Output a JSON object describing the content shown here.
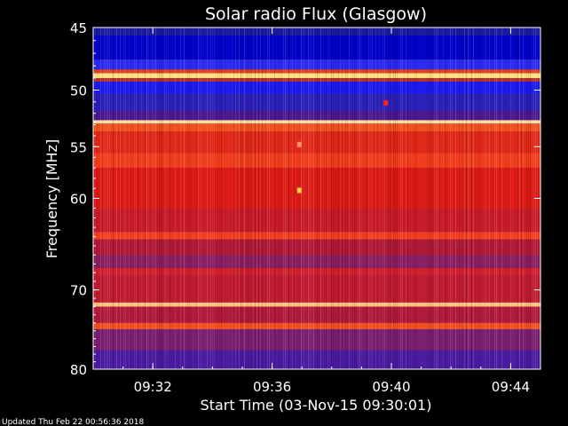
{
  "chart_data": {
    "type": "heatmap",
    "title": "Solar radio Flux (Glasgow)",
    "xlabel": "Start Time (03-Nov-15 09:30:01)",
    "ylabel": "Frequency [MHz]",
    "x_ticks": [
      "09:32",
      "09:36",
      "09:40",
      "09:44"
    ],
    "y_ticks": [
      "45",
      "50",
      "55",
      "60",
      "70",
      "80"
    ],
    "x_tick_minutes": [
      2,
      6,
      10,
      14
    ],
    "y_tick_values": [
      45,
      50,
      55,
      60,
      70,
      80
    ],
    "xlim_minutes": [
      0,
      15
    ],
    "ylim": [
      45,
      80
    ],
    "y_scale": "log",
    "colormap": "blue-red-yellow",
    "bands": [
      {
        "from": 45.0,
        "to": 45.6,
        "color": "#1a1aa0"
      },
      {
        "from": 45.6,
        "to": 47.5,
        "color": "#0000c8"
      },
      {
        "from": 47.5,
        "to": 48.3,
        "color": "#2a2af0"
      },
      {
        "from": 48.3,
        "to": 48.6,
        "color": "#e04020"
      },
      {
        "from": 48.6,
        "to": 49.0,
        "color": "#ffe080"
      },
      {
        "from": 49.0,
        "to": 49.3,
        "color": "#b03030"
      },
      {
        "from": 49.3,
        "to": 50.3,
        "color": "#1a1aee"
      },
      {
        "from": 50.3,
        "to": 51.8,
        "color": "#2a20b8"
      },
      {
        "from": 51.8,
        "to": 52.6,
        "color": "#4a1890"
      },
      {
        "from": 52.6,
        "to": 52.9,
        "color": "#ffe0a0"
      },
      {
        "from": 52.9,
        "to": 53.6,
        "color": "#f05020"
      },
      {
        "from": 53.6,
        "to": 55.6,
        "color": "#e02818"
      },
      {
        "from": 55.6,
        "to": 57.0,
        "color": "#f03c1c"
      },
      {
        "from": 57.0,
        "to": 61.0,
        "color": "#dc1a14"
      },
      {
        "from": 61.0,
        "to": 63.5,
        "color": "#c81a28"
      },
      {
        "from": 63.5,
        "to": 64.3,
        "color": "#f04020"
      },
      {
        "from": 64.3,
        "to": 66.0,
        "color": "#b01838"
      },
      {
        "from": 66.0,
        "to": 67.5,
        "color": "#8a1e60"
      },
      {
        "from": 67.5,
        "to": 68.3,
        "color": "#d02030"
      },
      {
        "from": 68.3,
        "to": 71.5,
        "color": "#c01a30"
      },
      {
        "from": 71.5,
        "to": 72.0,
        "color": "#ffc080"
      },
      {
        "from": 72.0,
        "to": 74.0,
        "color": "#b01a3a"
      },
      {
        "from": 74.0,
        "to": 74.8,
        "color": "#f05020"
      },
      {
        "from": 74.8,
        "to": 77.5,
        "color": "#7a1e70"
      },
      {
        "from": 77.5,
        "to": 80.0,
        "color": "#4a1aa0"
      }
    ],
    "hot_spots": [
      {
        "minute": 6.9,
        "freq": 59.2,
        "color": "#ffd040"
      },
      {
        "minute": 6.9,
        "freq": 54.8,
        "color": "#ff9060"
      },
      {
        "minute": 9.8,
        "freq": 51.1,
        "color": "#ff2020"
      }
    ]
  },
  "footer": {
    "updated": "Updated Thu Feb 22 00:56:36 2018"
  }
}
